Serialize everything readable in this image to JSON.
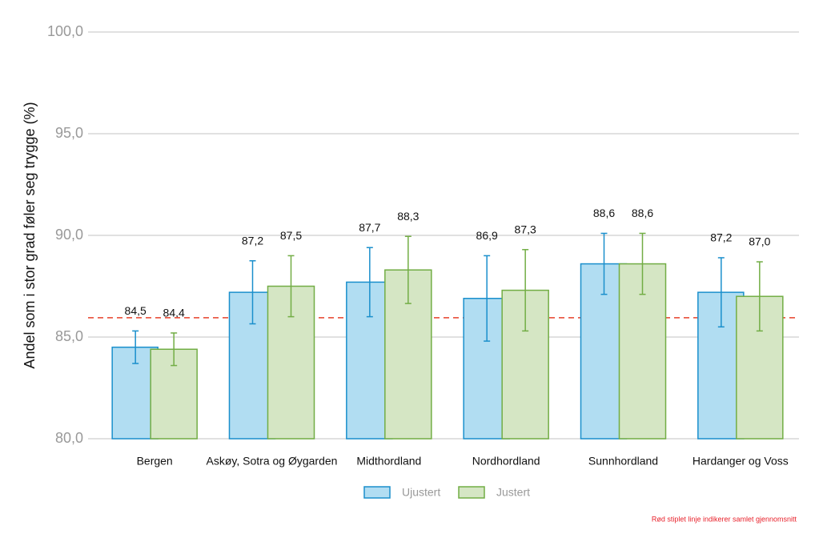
{
  "chart_data": {
    "type": "bar",
    "y_label": "Andel som i stor grad føler seg trygge (%)",
    "categories": [
      "Bergen",
      "Askøy, Sotra og Øygarden",
      "Midthordland",
      "Nordhordland",
      "Sunnhordland",
      "Hardanger og Voss"
    ],
    "series": [
      {
        "name": "Ujustert",
        "color": "#1a8fcc",
        "fill": "#b1ddf2",
        "values": [
          84.5,
          87.2,
          87.7,
          86.9,
          88.6,
          87.2
        ],
        "value_labels": [
          "84,5",
          "87,2",
          "87,7",
          "86,9",
          "88,6",
          "87,2"
        ],
        "errors": [
          0.8,
          1.55,
          1.7,
          2.1,
          1.5,
          1.7
        ]
      },
      {
        "name": "Justert",
        "color": "#72ad45",
        "fill": "#d5e6c4",
        "values": [
          84.4,
          87.5,
          88.3,
          87.3,
          88.6,
          87.0
        ],
        "value_labels": [
          "84,4",
          "87,5",
          "88,3",
          "87,3",
          "88,6",
          "87,0"
        ],
        "errors": [
          0.8,
          1.5,
          1.65,
          2.0,
          1.5,
          1.7
        ]
      }
    ],
    "reference_line": {
      "value": 85.95,
      "color": "#e8402a",
      "dashed": true
    },
    "note": "Rød stiplet linje indikerer samlet gjennomsnitt",
    "ylim": [
      80,
      100
    ],
    "yticks": [
      {
        "value": 80,
        "label": "80,0"
      },
      {
        "value": 85,
        "label": "85,0"
      },
      {
        "value": 90,
        "label": "90,0"
      },
      {
        "value": 95,
        "label": "95,0"
      },
      {
        "value": 100,
        "label": "100,0"
      }
    ],
    "grid": true
  }
}
